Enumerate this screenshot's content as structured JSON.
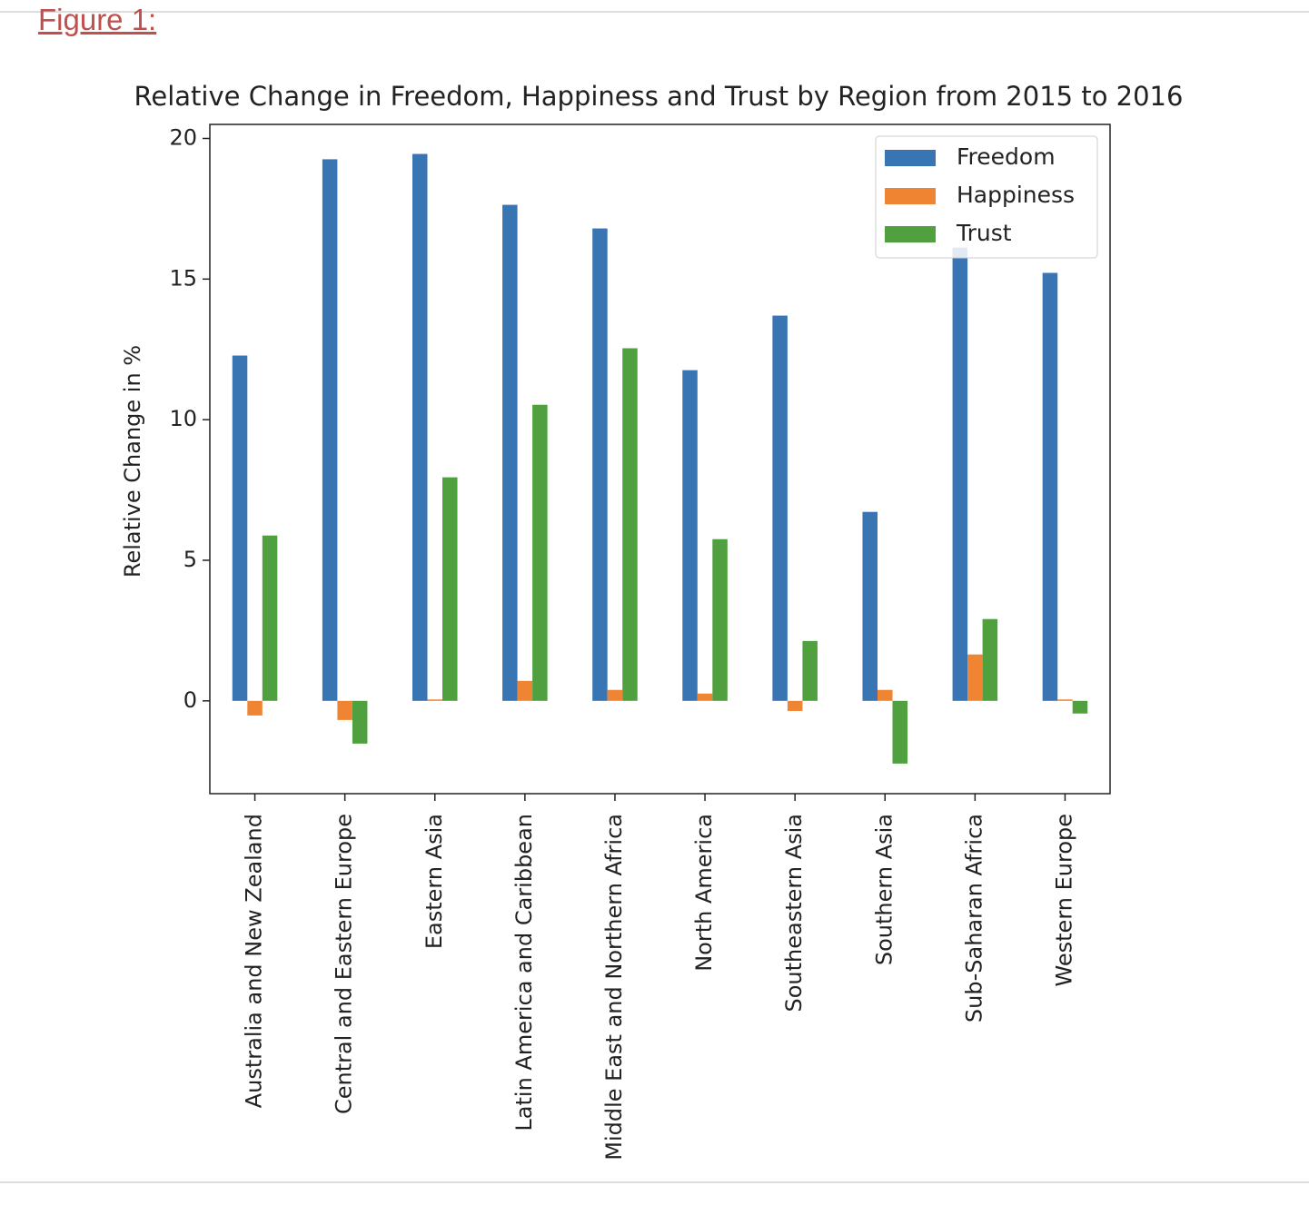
{
  "heading": "Figure 1:",
  "chart_data": {
    "type": "bar",
    "title": "Relative Change in Freedom, Happiness and Trust by Region from 2015 to 2016",
    "ylabel": "Relative Change in %",
    "categories": [
      "Australia and New Zealand",
      "Central and Eastern Europe",
      "Eastern Asia",
      "Latin America and Caribbean",
      "Middle East and Northern Africa",
      "North America",
      "Southeastern Asia",
      "Southern Asia",
      "Sub-Saharan Africa",
      "Western Europe"
    ],
    "series": [
      {
        "name": "Freedom",
        "color": "#3a75b3",
        "values": [
          12.28,
          19.26,
          19.45,
          17.64,
          16.8,
          11.76,
          13.7,
          6.72,
          16.12,
          15.22
        ]
      },
      {
        "name": "Happiness",
        "color": "#ef8532",
        "values": [
          -0.52,
          -0.68,
          0.05,
          0.71,
          0.39,
          0.26,
          -0.36,
          0.39,
          1.65,
          0.05
        ]
      },
      {
        "name": "Trust",
        "color": "#50a03f",
        "values": [
          5.88,
          -1.52,
          7.95,
          10.53,
          12.54,
          5.75,
          2.13,
          -2.23,
          2.91,
          -0.45
        ]
      }
    ],
    "ylim": [
      -3.3,
      20.5
    ],
    "yticks": [
      0,
      5,
      10,
      15,
      20
    ],
    "grid": false,
    "legend": "upper right"
  }
}
